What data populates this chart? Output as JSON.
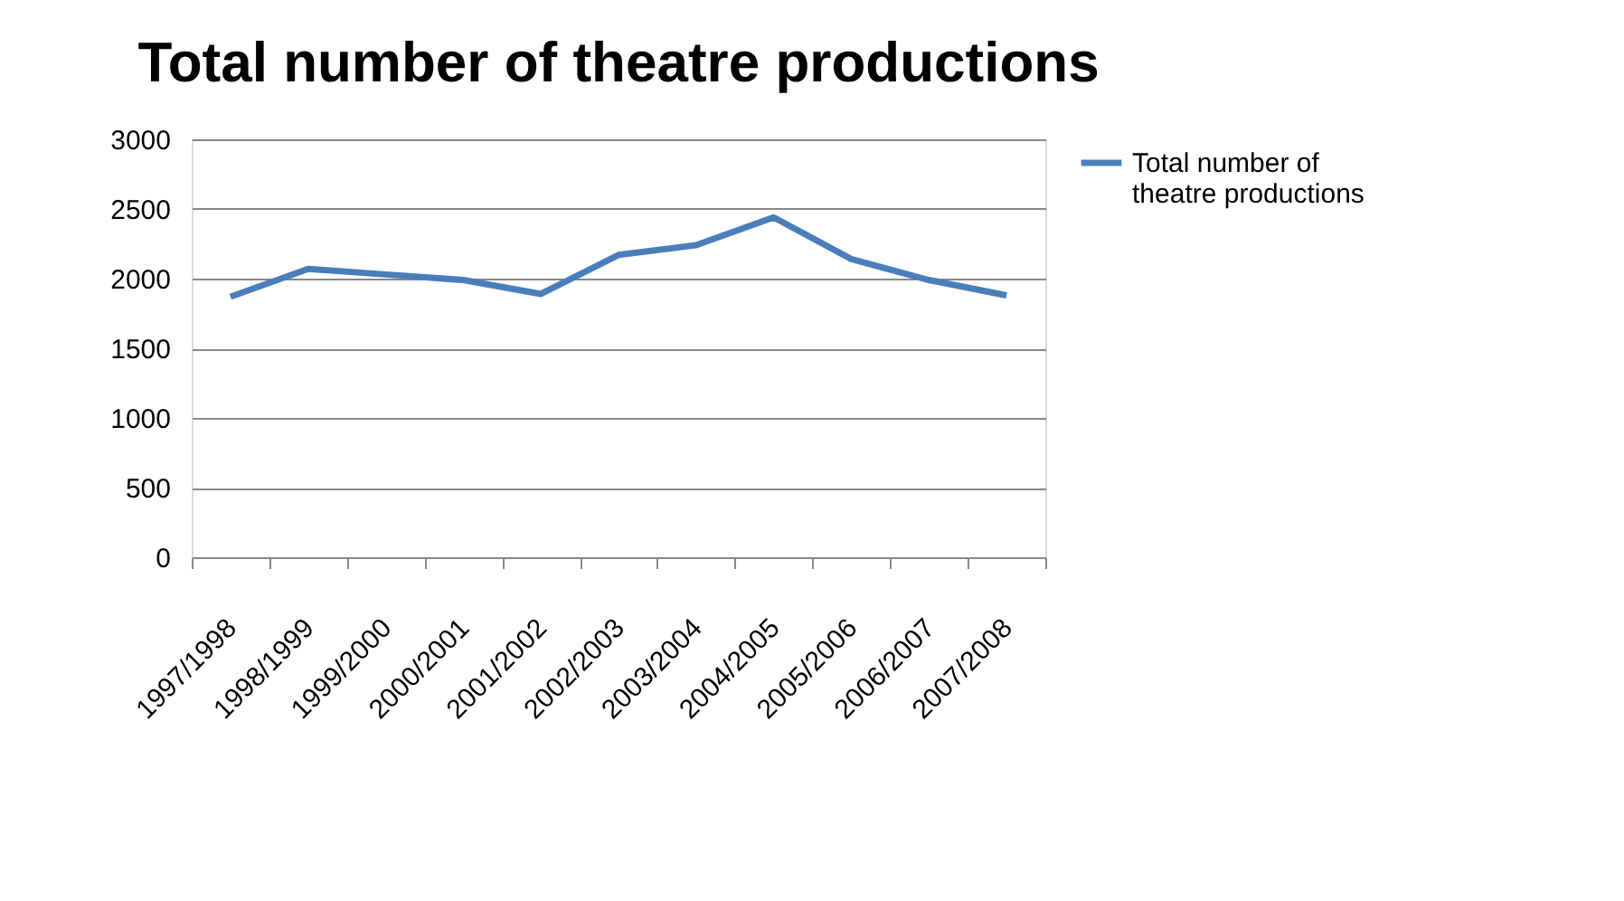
{
  "chart_data": {
    "type": "line",
    "title": "Total number of theatre productions",
    "categories": [
      "1997/1998",
      "1998/1999",
      "1999/2000",
      "2000/2001",
      "2001/2002",
      "2002/2003",
      "2003/2004",
      "2004/2005",
      "2005/2006",
      "2006/2007",
      "2007/2008"
    ],
    "series": [
      {
        "name": "Total number of theatre productions",
        "color": "#4a7ebb",
        "values": [
          1870,
          2070,
          2030,
          1990,
          1890,
          2170,
          2240,
          2440,
          2140,
          1990,
          1880
        ]
      }
    ],
    "ylim": [
      0,
      3000
    ],
    "yticks": [
      0,
      500,
      1000,
      1500,
      2000,
      2500,
      3000
    ],
    "grid": "y",
    "legend": "right",
    "marker": "none",
    "line_style": "solid"
  }
}
